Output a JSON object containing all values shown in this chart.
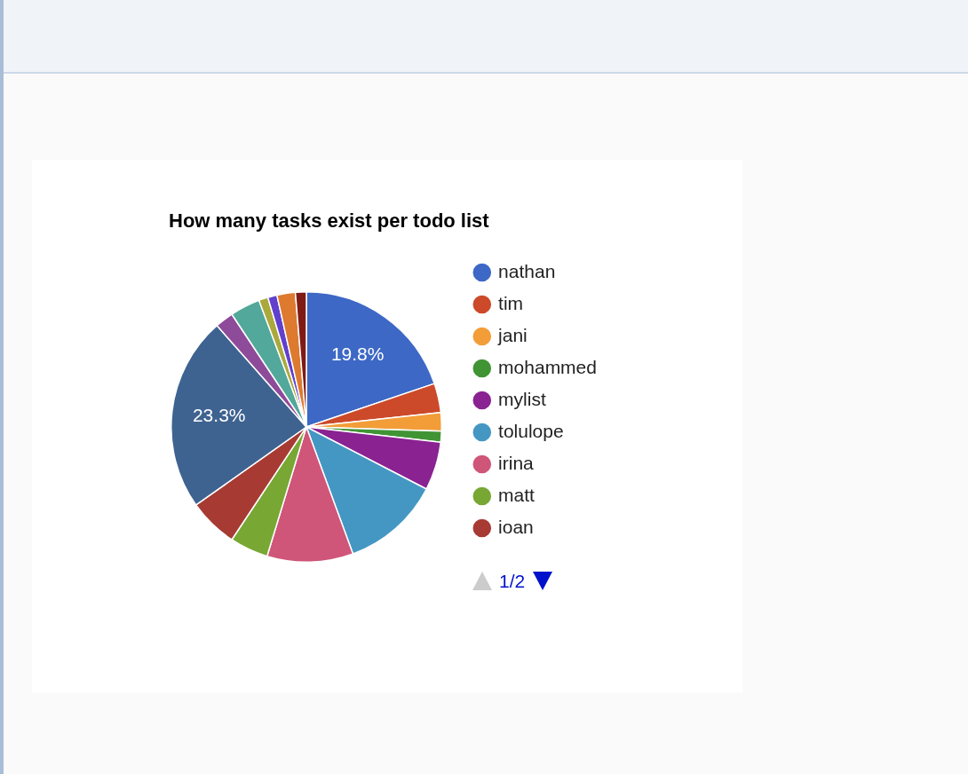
{
  "chart_data": {
    "type": "pie",
    "title": "How many tasks exist per todo list",
    "categories": [
      "nathan",
      "tim",
      "jani",
      "mohammed",
      "mylist",
      "tolulope",
      "irina",
      "matt",
      "ioan",
      null,
      null,
      null,
      null,
      null,
      null,
      null
    ],
    "values": [
      19.8,
      3.5,
      2.2,
      1.3,
      5.8,
      11.8,
      10.3,
      4.6,
      5.9,
      23.3,
      2.2,
      3.6,
      1.1,
      1.1,
      2.2,
      1.3
    ],
    "colors": [
      "#3d68c6",
      "#cc4a29",
      "#f29d38",
      "#409434",
      "#8a2292",
      "#4497c3",
      "#cf5579",
      "#78a734",
      "#a73b34",
      "#3e6390",
      "#8e4b99",
      "#52a89a",
      "#aba83d",
      "#6040cc",
      "#dd7a2f",
      "#7f1a14"
    ],
    "value_labels": [
      "19.8%",
      null,
      null,
      null,
      null,
      null,
      null,
      null,
      null,
      "23.3%",
      null,
      null,
      null,
      null,
      null,
      null
    ],
    "legend": "right",
    "annotations": [
      "1/2"
    ]
  }
}
